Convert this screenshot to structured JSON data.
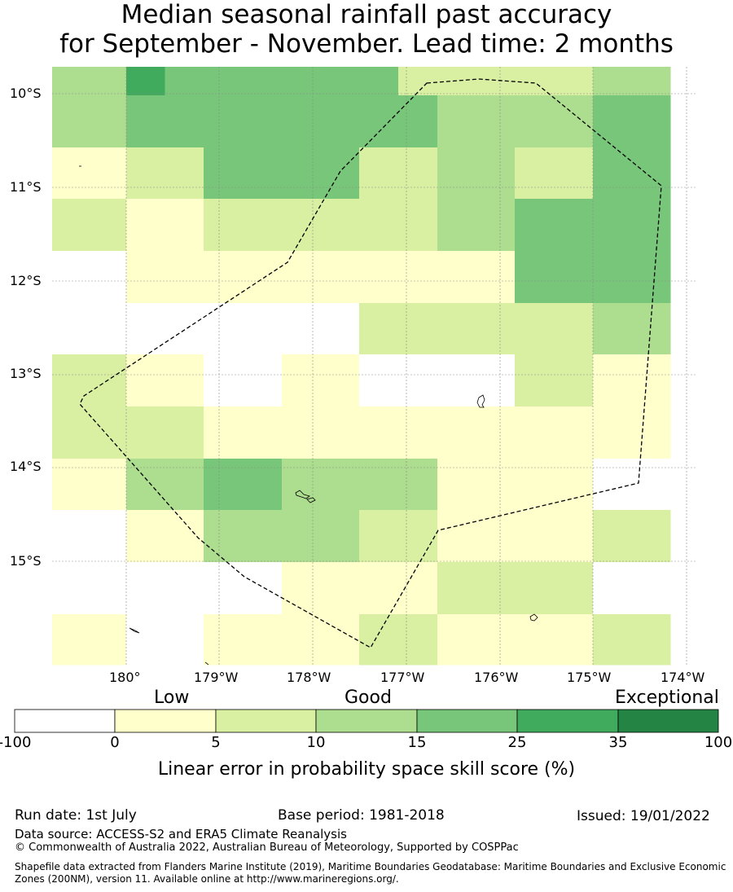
{
  "title": {
    "line1": "Median seasonal rainfall past accuracy",
    "line2": "for September - November. Lead time: 2 months"
  },
  "map": {
    "lat_labels": [
      "10°S",
      "11°S",
      "12°S",
      "13°S",
      "14°S",
      "15°S"
    ],
    "lon_labels": [
      "180°",
      "179°W",
      "178°W",
      "177°W",
      "176°W",
      "175°W",
      "174°W"
    ],
    "grid": [
      [
        3,
        3,
        5,
        4,
        4,
        4,
        4,
        4,
        4,
        2,
        2,
        2,
        2,
        2,
        3,
        3
      ],
      [
        3,
        3,
        4,
        4,
        4,
        4,
        4,
        4,
        4,
        4,
        3,
        3,
        3,
        3,
        4,
        4
      ],
      [
        1,
        1,
        2,
        2,
        4,
        4,
        4,
        4,
        2,
        2,
        3,
        3,
        2,
        2,
        4,
        4
      ],
      [
        2,
        2,
        1,
        1,
        2,
        2,
        2,
        2,
        2,
        2,
        3,
        3,
        4,
        4,
        4,
        4
      ],
      [
        0,
        0,
        1,
        1,
        1,
        1,
        1,
        1,
        1,
        1,
        1,
        1,
        4,
        4,
        4,
        4
      ],
      [
        0,
        0,
        0,
        0,
        0,
        0,
        0,
        0,
        2,
        2,
        2,
        2,
        2,
        2,
        3,
        3
      ],
      [
        2,
        2,
        1,
        1,
        0,
        0,
        1,
        1,
        0,
        0,
        0,
        0,
        2,
        2,
        1,
        1
      ],
      [
        2,
        2,
        2,
        2,
        1,
        1,
        1,
        1,
        1,
        1,
        1,
        1,
        1,
        1,
        1,
        1
      ],
      [
        1,
        1,
        3,
        3,
        4,
        4,
        3,
        3,
        3,
        3,
        1,
        1,
        1,
        1,
        0,
        0
      ],
      [
        0,
        0,
        1,
        1,
        3,
        3,
        3,
        3,
        2,
        2,
        1,
        1,
        1,
        1,
        2,
        2
      ],
      [
        0,
        0,
        0,
        0,
        0,
        0,
        1,
        1,
        1,
        1,
        2,
        2,
        2,
        2,
        0,
        0
      ],
      [
        1,
        1,
        0,
        0,
        1,
        1,
        1,
        1,
        2,
        2,
        1,
        1,
        1,
        1,
        2,
        2
      ]
    ]
  },
  "colorbar": {
    "words": {
      "low": "Low",
      "good": "Good",
      "exceptional": "Exceptional"
    },
    "ticks": [
      "-100",
      "0",
      "5",
      "10",
      "15",
      "25",
      "35",
      "100"
    ],
    "colors": [
      "#ffffff",
      "#ffffcc",
      "#d9f0a3",
      "#addd8e",
      "#78c679",
      "#41ab5d",
      "#238443"
    ],
    "label": "Linear error in probability space skill score (%)"
  },
  "footer": {
    "run_date": "Run date: 1st July",
    "base_period": "Base period: 1981-2018",
    "issued": "Issued: 19/01/2022",
    "data_source": "Data source: ACCESS-S2 and ERA5 Climate Reanalysis",
    "copyright": "© Commonwealth of Australia 2022, Australian Bureau of Meteorology, Supported by COSPPac",
    "shapefile_line1": "Shapefile data extracted from Flanders Marine Institute (2019), Maritime Boundaries Geodatabase: Maritime Boundaries and Exclusive Economic",
    "shapefile_line2": "Zones (200NM), version 11. Available online at http://www.marineregions.org/."
  }
}
